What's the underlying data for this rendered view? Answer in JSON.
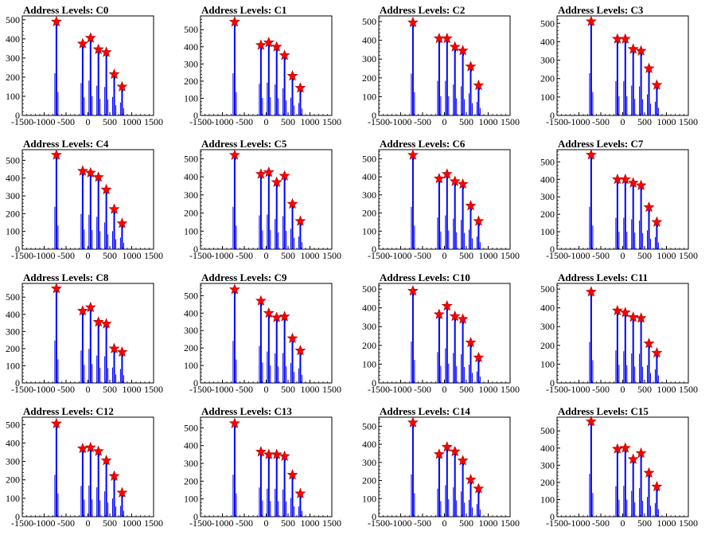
{
  "chart_data": [
    {
      "type": "histogram",
      "title": "Address Levels: C0",
      "xlim": [
        -1500,
        1500
      ],
      "ylim": [
        0,
        520
      ],
      "x_ticks": [
        "-1500",
        "-1000",
        "-500",
        "0",
        "500",
        "1000",
        "1500"
      ],
      "y_ticks": [
        "0",
        "100",
        "200",
        "300",
        "400",
        "500"
      ],
      "peaks": [
        {
          "x": -720,
          "y": 490
        },
        {
          "x": -120,
          "y": 375
        },
        {
          "x": 60,
          "y": 405
        },
        {
          "x": 240,
          "y": 345
        },
        {
          "x": 420,
          "y": 330
        },
        {
          "x": 600,
          "y": 215
        },
        {
          "x": 780,
          "y": 150
        }
      ]
    },
    {
      "type": "histogram",
      "title": "Address Levels: C1",
      "xlim": [
        -1500,
        1500
      ],
      "ylim": [
        0,
        580
      ],
      "x_ticks": [
        "-1500",
        "-1000",
        "-500",
        "0",
        "500",
        "1000",
        "1500"
      ],
      "y_ticks": [
        "0",
        "100",
        "200",
        "300",
        "400",
        "500"
      ],
      "peaks": [
        {
          "x": -720,
          "y": 545
        },
        {
          "x": -120,
          "y": 410
        },
        {
          "x": 60,
          "y": 425
        },
        {
          "x": 240,
          "y": 400
        },
        {
          "x": 420,
          "y": 350
        },
        {
          "x": 600,
          "y": 230
        },
        {
          "x": 780,
          "y": 160
        }
      ]
    },
    {
      "type": "histogram",
      "title": "Address Levels: C2",
      "xlim": [
        -1500,
        1500
      ],
      "ylim": [
        0,
        530
      ],
      "x_ticks": [
        "-1500",
        "-1000",
        "-500",
        "0",
        "500",
        "1000",
        "1500"
      ],
      "y_ticks": [
        "0",
        "100",
        "200",
        "300",
        "400",
        "500"
      ],
      "peaks": [
        {
          "x": -720,
          "y": 495
        },
        {
          "x": -120,
          "y": 410
        },
        {
          "x": 60,
          "y": 410
        },
        {
          "x": 240,
          "y": 365
        },
        {
          "x": 420,
          "y": 345
        },
        {
          "x": 600,
          "y": 260
        },
        {
          "x": 780,
          "y": 160
        }
      ]
    },
    {
      "type": "histogram",
      "title": "Address Levels: C3",
      "xlim": [
        -1500,
        1500
      ],
      "ylim": [
        0,
        540
      ],
      "x_ticks": [
        "-1500",
        "-1000",
        "-500",
        "0",
        "500",
        "1000",
        "1500"
      ],
      "y_ticks": [
        "0",
        "100",
        "200",
        "300",
        "400",
        "500"
      ],
      "peaks": [
        {
          "x": -720,
          "y": 510
        },
        {
          "x": -120,
          "y": 415
        },
        {
          "x": 60,
          "y": 415
        },
        {
          "x": 240,
          "y": 360
        },
        {
          "x": 420,
          "y": 350
        },
        {
          "x": 600,
          "y": 255
        },
        {
          "x": 780,
          "y": 165
        }
      ]
    },
    {
      "type": "histogram",
      "title": "Address Levels: C4",
      "xlim": [
        -1500,
        1500
      ],
      "ylim": [
        0,
        560
      ],
      "x_ticks": [
        "-1500",
        "-1000",
        "-500",
        "0",
        "500",
        "1000",
        "1500"
      ],
      "y_ticks": [
        "0",
        "100",
        "200",
        "300",
        "400",
        "500"
      ],
      "peaks": [
        {
          "x": -720,
          "y": 530
        },
        {
          "x": -120,
          "y": 440
        },
        {
          "x": 60,
          "y": 430
        },
        {
          "x": 240,
          "y": 405
        },
        {
          "x": 420,
          "y": 335
        },
        {
          "x": 600,
          "y": 225
        },
        {
          "x": 780,
          "y": 145
        }
      ]
    },
    {
      "type": "histogram",
      "title": "Address Levels: C5",
      "xlim": [
        -1500,
        1500
      ],
      "ylim": [
        0,
        550
      ],
      "x_ticks": [
        "-1500",
        "-1000",
        "-500",
        "0",
        "500",
        "1000",
        "1500"
      ],
      "y_ticks": [
        "0",
        "100",
        "200",
        "300",
        "400",
        "500"
      ],
      "peaks": [
        {
          "x": -720,
          "y": 520
        },
        {
          "x": -120,
          "y": 415
        },
        {
          "x": 60,
          "y": 425
        },
        {
          "x": 240,
          "y": 370
        },
        {
          "x": 420,
          "y": 405
        },
        {
          "x": 600,
          "y": 250
        },
        {
          "x": 780,
          "y": 155
        }
      ]
    },
    {
      "type": "histogram",
      "title": "Address Levels: C6",
      "xlim": [
        -1500,
        1500
      ],
      "ylim": [
        0,
        550
      ],
      "x_ticks": [
        "-1500",
        "-1000",
        "-500",
        "0",
        "500",
        "1000",
        "1500"
      ],
      "y_ticks": [
        "0",
        "100",
        "200",
        "300",
        "400",
        "500"
      ],
      "peaks": [
        {
          "x": -720,
          "y": 520
        },
        {
          "x": -120,
          "y": 390
        },
        {
          "x": 60,
          "y": 415
        },
        {
          "x": 240,
          "y": 375
        },
        {
          "x": 420,
          "y": 360
        },
        {
          "x": 600,
          "y": 240
        },
        {
          "x": 780,
          "y": 155
        }
      ]
    },
    {
      "type": "histogram",
      "title": "Address Levels: C7",
      "xlim": [
        -1500,
        1500
      ],
      "ylim": [
        0,
        570
      ],
      "x_ticks": [
        "-1500",
        "-1000",
        "-500",
        "0",
        "500",
        "1000",
        "1500"
      ],
      "y_ticks": [
        "0",
        "100",
        "200",
        "300",
        "400",
        "500"
      ],
      "peaks": [
        {
          "x": -720,
          "y": 540
        },
        {
          "x": -120,
          "y": 400
        },
        {
          "x": 60,
          "y": 400
        },
        {
          "x": 240,
          "y": 380
        },
        {
          "x": 420,
          "y": 365
        },
        {
          "x": 600,
          "y": 240
        },
        {
          "x": 780,
          "y": 155
        }
      ]
    },
    {
      "type": "histogram",
      "title": "Address Levels: C8",
      "xlim": [
        -1500,
        1500
      ],
      "ylim": [
        0,
        580
      ],
      "x_ticks": [
        "-1500",
        "-1000",
        "-500",
        "0",
        "500",
        "1000",
        "1500"
      ],
      "y_ticks": [
        "0",
        "100",
        "200",
        "300",
        "400",
        "500"
      ],
      "peaks": [
        {
          "x": -720,
          "y": 550
        },
        {
          "x": -120,
          "y": 420
        },
        {
          "x": 60,
          "y": 440
        },
        {
          "x": 240,
          "y": 355
        },
        {
          "x": 420,
          "y": 345
        },
        {
          "x": 600,
          "y": 200
        },
        {
          "x": 780,
          "y": 180
        }
      ]
    },
    {
      "type": "histogram",
      "title": "Address Levels: C9",
      "xlim": [
        -1500,
        1500
      ],
      "ylim": [
        0,
        570
      ],
      "x_ticks": [
        "-1500",
        "-1000",
        "-500",
        "0",
        "500",
        "1000",
        "1500"
      ],
      "y_ticks": [
        "0",
        "100",
        "200",
        "300",
        "400",
        "500"
      ],
      "peaks": [
        {
          "x": -720,
          "y": 535
        },
        {
          "x": -120,
          "y": 470
        },
        {
          "x": 60,
          "y": 400
        },
        {
          "x": 240,
          "y": 375
        },
        {
          "x": 420,
          "y": 380
        },
        {
          "x": 600,
          "y": 255
        },
        {
          "x": 780,
          "y": 185
        }
      ]
    },
    {
      "type": "histogram",
      "title": "Address Levels: C10",
      "xlim": [
        -1500,
        1500
      ],
      "ylim": [
        0,
        530
      ],
      "x_ticks": [
        "-1500",
        "-1000",
        "-500",
        "0",
        "500",
        "1000",
        "1500"
      ],
      "y_ticks": [
        "0",
        "100",
        "200",
        "300",
        "400",
        "500"
      ],
      "peaks": [
        {
          "x": -720,
          "y": 490
        },
        {
          "x": -120,
          "y": 365
        },
        {
          "x": 60,
          "y": 410
        },
        {
          "x": 240,
          "y": 355
        },
        {
          "x": 420,
          "y": 340
        },
        {
          "x": 600,
          "y": 215
        },
        {
          "x": 780,
          "y": 135
        }
      ]
    },
    {
      "type": "histogram",
      "title": "Address Levels: C11",
      "xlim": [
        -1500,
        1500
      ],
      "ylim": [
        0,
        530
      ],
      "x_ticks": [
        "-1500",
        "-1000",
        "-500",
        "0",
        "500",
        "1000",
        "1500"
      ],
      "y_ticks": [
        "0",
        "100",
        "200",
        "300",
        "400",
        "500"
      ],
      "peaks": [
        {
          "x": -720,
          "y": 485
        },
        {
          "x": -120,
          "y": 385
        },
        {
          "x": 60,
          "y": 375
        },
        {
          "x": 240,
          "y": 350
        },
        {
          "x": 420,
          "y": 345
        },
        {
          "x": 600,
          "y": 210
        },
        {
          "x": 780,
          "y": 160
        }
      ]
    },
    {
      "type": "histogram",
      "title": "Address Levels: C12",
      "xlim": [
        -1500,
        1500
      ],
      "ylim": [
        0,
        540
      ],
      "x_ticks": [
        "-1500",
        "-1000",
        "-500",
        "0",
        "500",
        "1000",
        "1500"
      ],
      "y_ticks": [
        "0",
        "100",
        "200",
        "300",
        "400",
        "500"
      ],
      "peaks": [
        {
          "x": -720,
          "y": 505
        },
        {
          "x": -120,
          "y": 370
        },
        {
          "x": 60,
          "y": 375
        },
        {
          "x": 240,
          "y": 355
        },
        {
          "x": 420,
          "y": 305
        },
        {
          "x": 600,
          "y": 220
        },
        {
          "x": 780,
          "y": 130
        }
      ]
    },
    {
      "type": "histogram",
      "title": "Address Levels: C13",
      "xlim": [
        -1500,
        1500
      ],
      "ylim": [
        0,
        560
      ],
      "x_ticks": [
        "-1500",
        "-1000",
        "-500",
        "0",
        "500",
        "1000",
        "1500"
      ],
      "y_ticks": [
        "0",
        "100",
        "200",
        "300",
        "400",
        "500"
      ],
      "peaks": [
        {
          "x": -720,
          "y": 525
        },
        {
          "x": -120,
          "y": 365
        },
        {
          "x": 60,
          "y": 350
        },
        {
          "x": 240,
          "y": 350
        },
        {
          "x": 420,
          "y": 340
        },
        {
          "x": 600,
          "y": 235
        },
        {
          "x": 780,
          "y": 130
        }
      ]
    },
    {
      "type": "histogram",
      "title": "Address Levels: C14",
      "xlim": [
        -1500,
        1500
      ],
      "ylim": [
        0,
        550
      ],
      "x_ticks": [
        "-1500",
        "-1000",
        "-500",
        "0",
        "500",
        "1000",
        "1500"
      ],
      "y_ticks": [
        "0",
        "100",
        "200",
        "300",
        "400",
        "500"
      ],
      "peaks": [
        {
          "x": -720,
          "y": 520
        },
        {
          "x": -120,
          "y": 345
        },
        {
          "x": 60,
          "y": 385
        },
        {
          "x": 240,
          "y": 360
        },
        {
          "x": 420,
          "y": 310
        },
        {
          "x": 600,
          "y": 205
        },
        {
          "x": 780,
          "y": 155
        }
      ]
    },
    {
      "type": "histogram",
      "title": "Address Levels: C15",
      "xlim": [
        -1500,
        1500
      ],
      "ylim": [
        0,
        580
      ],
      "x_ticks": [
        "-1500",
        "-1000",
        "-500",
        "0",
        "500",
        "1000",
        "1500"
      ],
      "y_ticks": [
        "0",
        "100",
        "200",
        "300",
        "400",
        "500"
      ],
      "peaks": [
        {
          "x": -720,
          "y": 555
        },
        {
          "x": -120,
          "y": 395
        },
        {
          "x": 60,
          "y": 400
        },
        {
          "x": 240,
          "y": 335
        },
        {
          "x": 420,
          "y": 370
        },
        {
          "x": 600,
          "y": 255
        },
        {
          "x": 780,
          "y": 175
        }
      ]
    }
  ],
  "colors": {
    "bars": "#0000ff",
    "markers": "#ff0000",
    "axis": "#000000"
  }
}
